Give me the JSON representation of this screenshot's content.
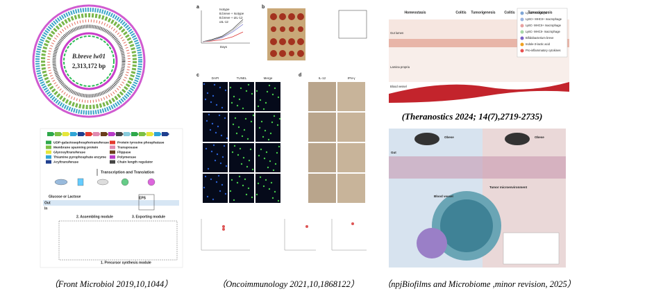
{
  "panels": {
    "genome": {
      "name": "B.breve lw01",
      "size": "2,313,172 bp"
    },
    "pathway": {
      "legend": [
        "UDP-galactosephosphotransferase",
        "Membrane spanning protein",
        "Glycosyltransferase",
        "Thiamine pyrophosphate enzyme",
        "Acyltransferase",
        "Protein tyrosine phosphatase",
        "Transposase",
        "Flippase",
        "Polymerase",
        "Chain length regulator"
      ],
      "step": "Transcription and Translation",
      "labels": [
        "Glucose or Lactose",
        "2. Assembling module",
        "3. Exporting module",
        "1. Precursor synthesis module",
        "Out",
        "In",
        "EPS"
      ]
    },
    "tumor": {
      "letters": [
        "a",
        "b",
        "c",
        "d"
      ],
      "series": [
        "Isotype",
        "B.breve + Isotype",
        "B.breve + αIL-12",
        "αIL-12"
      ],
      "columns": [
        "DAPI",
        "TUNEL",
        "Merge",
        "IL-12",
        "IFN-γ"
      ],
      "x_label": "Days"
    },
    "colitis": {
      "stages": [
        "Homeostasis",
        "Colitis",
        "Tumorigenesis",
        "Colitis",
        "Tumorigenesis"
      ],
      "regions": [
        "Gut lumen",
        "Lamina propria",
        "Blood vessel"
      ],
      "legend": [
        "Ly6C+ monocyte",
        "Ly6C+ MHCII+ macrophage",
        "Ly6C- MHCII+ macrophage",
        "Ly6C- MHCII- macrophage",
        "Bifidobacterium breve",
        "Indole-3-lactic acid",
        "Pro-inflammatory cytokines"
      ]
    },
    "obese": {
      "labels": [
        "Obese",
        "Obese",
        "Gut",
        "Blood vessel",
        "Tumor microenvironment"
      ]
    }
  },
  "captions": [
    "（Front Microbiol 2019,10,1044）",
    "（Oncoimmunology 2021,10,1868122）",
    "(Theranostics 2024; 14(7),2719-2735)",
    "（npjBiofilms and Microbiome ,minor revision, 2025）"
  ]
}
